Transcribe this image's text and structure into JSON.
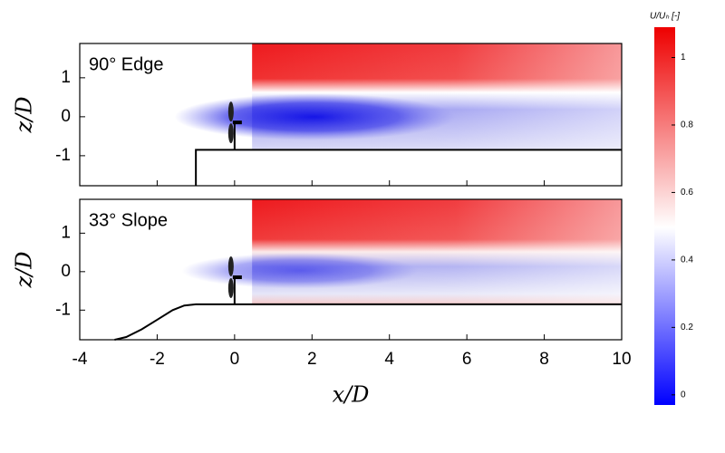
{
  "chart_data": [
    {
      "type": "heatmap",
      "label": "90° Edge",
      "ylabel": "z/D",
      "xlim": [
        -4,
        10
      ],
      "ylim": [
        -1.77,
        1.88
      ],
      "yticks": [
        -1,
        0,
        1
      ],
      "terrain": {
        "x": [
          -1,
          -1,
          10
        ],
        "z": [
          -1.77,
          -0.85,
          -0.85
        ]
      }
    },
    {
      "type": "heatmap",
      "label": "33° Slope",
      "ylabel": "z/D",
      "xlabel": "x/D",
      "xlim": [
        -4,
        10
      ],
      "ylim": [
        -1.77,
        1.88
      ],
      "yticks": [
        -1,
        0,
        1
      ],
      "xticks": [
        -4,
        -2,
        0,
        2,
        4,
        6,
        8,
        10
      ],
      "terrain": {
        "x": [
          -3.1,
          -2.8,
          -2.4,
          -2,
          -1.6,
          -1.3,
          -1,
          10
        ],
        "z": [
          -1.77,
          -1.7,
          -1.5,
          -1.25,
          -1.0,
          -0.88,
          -0.85,
          -0.85
        ]
      }
    }
  ],
  "colorbar": {
    "label": "U/Uₕ [-]",
    "lim": [
      -0.03,
      1.09
    ],
    "ticks": [
      0,
      0.2,
      0.4,
      0.6,
      0.8,
      1
    ]
  }
}
